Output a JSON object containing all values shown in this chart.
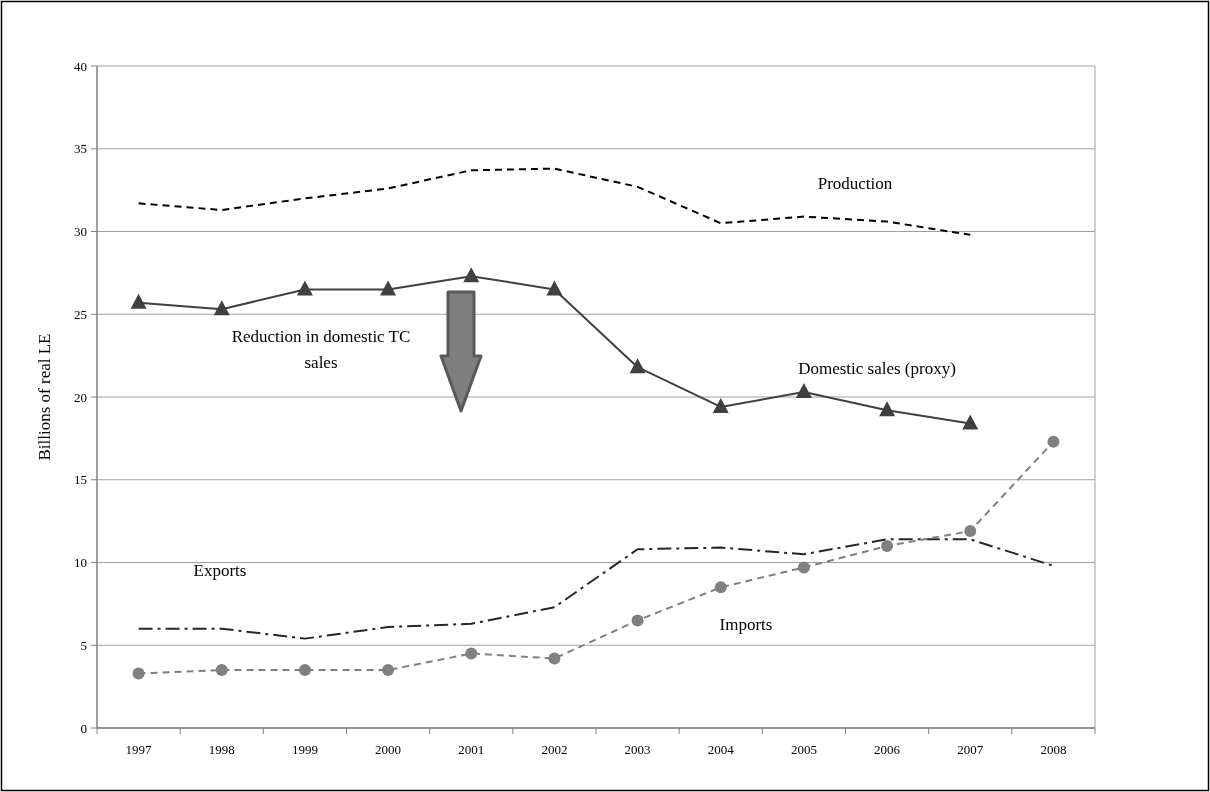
{
  "chart_data": {
    "type": "line",
    "ylabel": "Billions of real LE",
    "categories": [
      "1997",
      "1998",
      "1999",
      "2000",
      "2001",
      "2002",
      "2003",
      "2004",
      "2005",
      "2006",
      "2007",
      "2008"
    ],
    "ylim": [
      0,
      40
    ],
    "yticks": [
      0,
      5,
      10,
      15,
      20,
      25,
      30,
      35,
      40
    ],
    "grid": "y",
    "series": [
      {
        "name": "Production",
        "color": "#000000",
        "line_style": "dashed",
        "marker": "none",
        "values": [
          31.7,
          31.3,
          32.0,
          32.6,
          33.7,
          33.8,
          32.7,
          30.5,
          30.9,
          30.6,
          29.8,
          null
        ]
      },
      {
        "name": "Domestic sales (proxy)",
        "color": "#404040",
        "line_style": "solid",
        "marker": "triangle",
        "values": [
          25.7,
          25.3,
          26.5,
          26.5,
          27.3,
          26.5,
          21.8,
          19.4,
          20.3,
          19.2,
          18.4,
          null
        ]
      },
      {
        "name": "Exports",
        "color": "#262626",
        "line_style": "dashdot",
        "marker": "none",
        "values": [
          6.0,
          6.0,
          5.4,
          6.1,
          6.3,
          7.3,
          10.8,
          10.9,
          10.5,
          11.4,
          11.4,
          9.8
        ]
      },
      {
        "name": "Imports",
        "color": "#808080",
        "line_style": "dashed",
        "marker": "circle",
        "values": [
          3.3,
          3.5,
          3.5,
          3.5,
          4.5,
          4.2,
          6.5,
          8.5,
          9.7,
          11.0,
          11.9,
          17.3
        ]
      }
    ],
    "annotations": [
      "Reduction in domestic TC sales"
    ]
  }
}
